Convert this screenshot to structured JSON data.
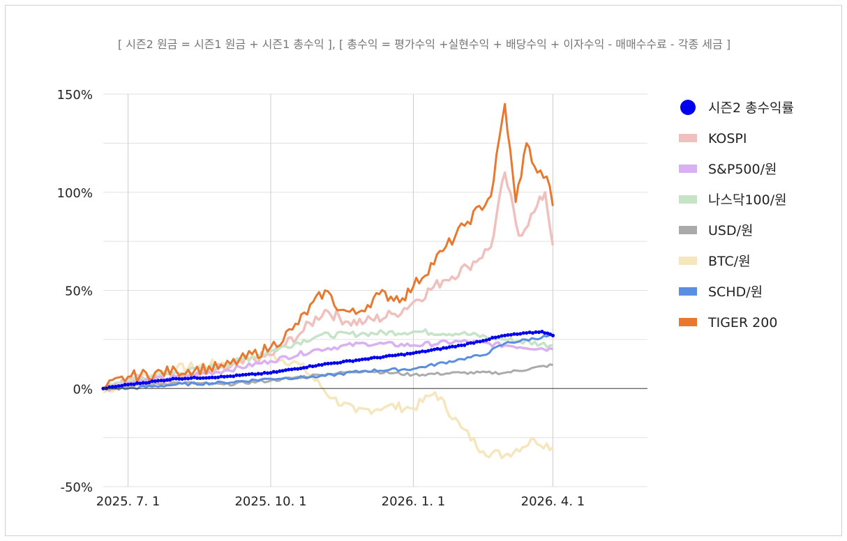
{
  "chart_data": {
    "type": "line",
    "title": "[ 시즌2 원금 = 시즌1 원금 + 시즌1 총수익 ],   [ 총수익 = 평가수익 +실현수익 + 배당수익 + 이자수익 - 매매수수료 - 각종 세금 ]",
    "xlabel": "",
    "ylabel": "",
    "x_range": [
      "2025-06-15",
      "2026-06-01"
    ],
    "ylim": [
      -50,
      150
    ],
    "y_ticks": [
      -50,
      0,
      50,
      100,
      150
    ],
    "y_tick_labels": [
      "-50%",
      "0%",
      "50%",
      "100%",
      "150%"
    ],
    "x_ticks": [
      "2025-07-01",
      "2025-10-01",
      "2026-01-01",
      "2026-04-01"
    ],
    "x_tick_labels": [
      "2025. 7. 1",
      "2025. 10. 1",
      "2026. 1. 1",
      "2026. 4. 1"
    ],
    "grid": true,
    "legend_position": "right",
    "series": [
      {
        "name": "시즌2 총수익률",
        "style": "dots",
        "color": "#0000ee",
        "points": [
          [
            "2025-06-15",
            0
          ],
          [
            "2025-07-01",
            2
          ],
          [
            "2025-08-01",
            5
          ],
          [
            "2025-09-01",
            6
          ],
          [
            "2025-10-01",
            8
          ],
          [
            "2025-11-01",
            12
          ],
          [
            "2025-12-01",
            15
          ],
          [
            "2026-01-01",
            18
          ],
          [
            "2026-02-01",
            22
          ],
          [
            "2026-03-01",
            27
          ],
          [
            "2026-03-25",
            29
          ],
          [
            "2026-04-01",
            27
          ]
        ]
      },
      {
        "name": "KOSPI",
        "style": "line",
        "color": "#efc0bd",
        "points": [
          [
            "2025-06-15",
            0
          ],
          [
            "2025-07-01",
            4
          ],
          [
            "2025-08-01",
            6
          ],
          [
            "2025-09-01",
            10
          ],
          [
            "2025-10-01",
            17
          ],
          [
            "2025-10-20",
            28
          ],
          [
            "2025-11-05",
            40
          ],
          [
            "2025-11-20",
            34
          ],
          [
            "2025-12-01",
            34
          ],
          [
            "2025-12-20",
            38
          ],
          [
            "2026-01-01",
            44
          ],
          [
            "2026-01-20",
            55
          ],
          [
            "2026-02-05",
            62
          ],
          [
            "2026-02-20",
            72
          ],
          [
            "2026-03-01",
            110
          ],
          [
            "2026-03-10",
            78
          ],
          [
            "2026-03-20",
            90
          ],
          [
            "2026-03-27",
            100
          ],
          [
            "2026-04-01",
            73
          ]
        ]
      },
      {
        "name": "S&P500/원",
        "style": "line",
        "color": "#d9b0f2",
        "points": [
          [
            "2025-06-15",
            0
          ],
          [
            "2025-07-01",
            3
          ],
          [
            "2025-08-01",
            6
          ],
          [
            "2025-09-01",
            9
          ],
          [
            "2025-10-01",
            14
          ],
          [
            "2025-11-01",
            20
          ],
          [
            "2025-12-01",
            23
          ],
          [
            "2026-01-01",
            22
          ],
          [
            "2026-02-01",
            24
          ],
          [
            "2026-03-01",
            22
          ],
          [
            "2026-04-01",
            20
          ]
        ]
      },
      {
        "name": "나스닥100/원",
        "style": "line",
        "color": "#c6e3c8",
        "points": [
          [
            "2025-06-15",
            0
          ],
          [
            "2025-07-01",
            4
          ],
          [
            "2025-08-01",
            8
          ],
          [
            "2025-09-01",
            12
          ],
          [
            "2025-10-01",
            19
          ],
          [
            "2025-11-01",
            27
          ],
          [
            "2025-12-01",
            28
          ],
          [
            "2026-01-01",
            29
          ],
          [
            "2026-02-01",
            28
          ],
          [
            "2026-03-01",
            25
          ],
          [
            "2026-04-01",
            22
          ]
        ]
      },
      {
        "name": "USD/원",
        "style": "line",
        "color": "#aaaaaa",
        "points": [
          [
            "2025-06-15",
            0
          ],
          [
            "2025-07-01",
            1
          ],
          [
            "2025-08-01",
            3
          ],
          [
            "2025-09-01",
            2
          ],
          [
            "2025-10-01",
            4
          ],
          [
            "2025-11-01",
            7
          ],
          [
            "2025-12-01",
            9
          ],
          [
            "2026-01-01",
            7
          ],
          [
            "2026-02-01",
            8
          ],
          [
            "2026-03-01",
            8
          ],
          [
            "2026-04-01",
            12
          ]
        ]
      },
      {
        "name": "BTC/원",
        "style": "line",
        "color": "#f5e6bd",
        "points": [
          [
            "2025-06-15",
            -2
          ],
          [
            "2025-07-01",
            4
          ],
          [
            "2025-08-01",
            10
          ],
          [
            "2025-09-01",
            13
          ],
          [
            "2025-10-01",
            17
          ],
          [
            "2025-10-20",
            12
          ],
          [
            "2025-11-10",
            -5
          ],
          [
            "2025-11-25",
            -12
          ],
          [
            "2025-12-15",
            -9
          ],
          [
            "2026-01-01",
            -10
          ],
          [
            "2026-01-15",
            -2
          ],
          [
            "2026-02-01",
            -20
          ],
          [
            "2026-02-15",
            -32
          ],
          [
            "2026-03-01",
            -34
          ],
          [
            "2026-03-20",
            -26
          ],
          [
            "2026-04-01",
            -30
          ]
        ]
      },
      {
        "name": "SCHD/원",
        "style": "line",
        "color": "#5b8ee0",
        "points": [
          [
            "2025-06-15",
            0
          ],
          [
            "2025-07-01",
            0
          ],
          [
            "2025-08-01",
            2
          ],
          [
            "2025-09-01",
            3
          ],
          [
            "2025-10-01",
            5
          ],
          [
            "2025-11-01",
            6
          ],
          [
            "2025-12-01",
            9
          ],
          [
            "2026-01-01",
            10
          ],
          [
            "2026-02-01",
            15
          ],
          [
            "2026-02-15",
            17
          ],
          [
            "2026-03-01",
            23
          ],
          [
            "2026-04-01",
            27
          ]
        ]
      },
      {
        "name": "TIGER 200",
        "style": "line",
        "color": "#e8782f",
        "points": [
          [
            "2025-06-15",
            0
          ],
          [
            "2025-07-01",
            6
          ],
          [
            "2025-08-01",
            9
          ],
          [
            "2025-09-01",
            11
          ],
          [
            "2025-10-01",
            21
          ],
          [
            "2025-10-15",
            30
          ],
          [
            "2025-11-05",
            50
          ],
          [
            "2025-11-15",
            40
          ],
          [
            "2025-11-25",
            38
          ],
          [
            "2025-12-10",
            48
          ],
          [
            "2025-12-25",
            46
          ],
          [
            "2026-01-01",
            52
          ],
          [
            "2026-01-20",
            70
          ],
          [
            "2026-02-05",
            85
          ],
          [
            "2026-02-20",
            98
          ],
          [
            "2026-03-01",
            145
          ],
          [
            "2026-03-08",
            95
          ],
          [
            "2026-03-15",
            125
          ],
          [
            "2026-03-22",
            110
          ],
          [
            "2026-03-28",
            108
          ],
          [
            "2026-04-01",
            93
          ]
        ]
      }
    ]
  }
}
